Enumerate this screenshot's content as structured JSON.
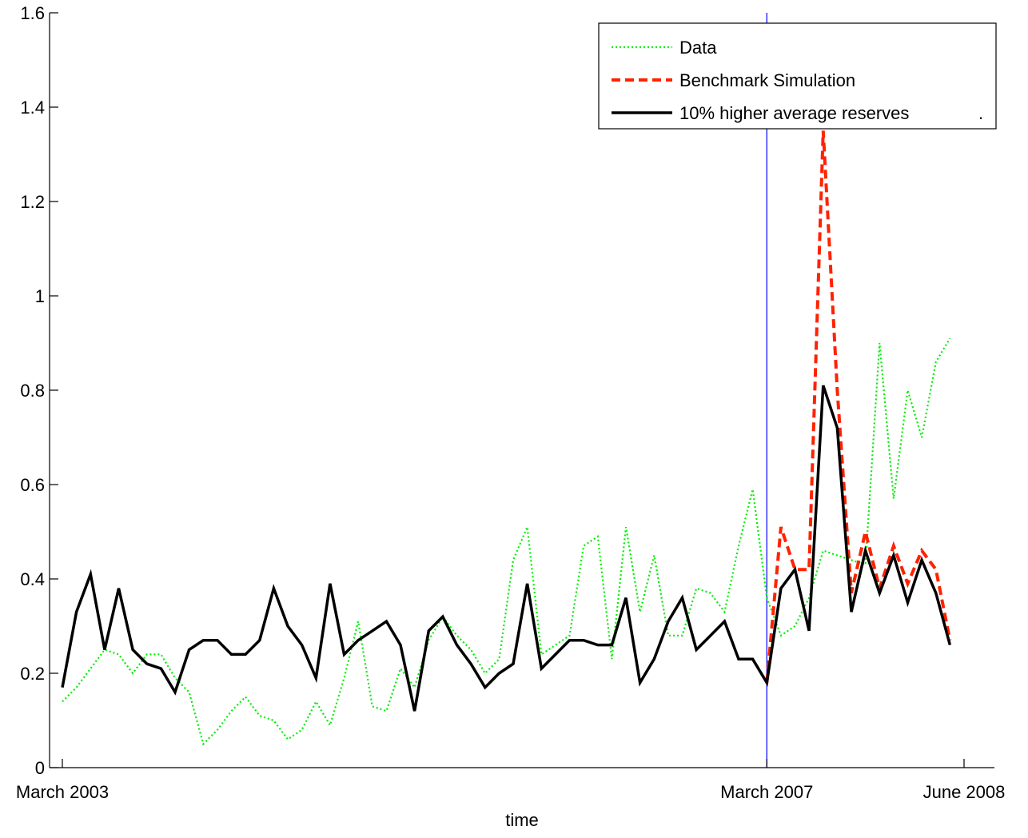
{
  "chart_data": {
    "type": "line",
    "title": "",
    "xlabel": "time",
    "ylabel": "",
    "ylim": [
      0,
      1.6
    ],
    "xlim": [
      0,
      64
    ],
    "yticks": [
      0,
      0.2,
      0.4,
      0.6,
      0.8,
      1,
      1.2,
      1.4,
      1.6
    ],
    "ytick_labels": [
      "0",
      "0.2",
      "0.4",
      "0.6",
      "0.8",
      "1",
      "1.2",
      "1.4",
      "1.6"
    ],
    "xtick_labels": [
      {
        "label": "March 2003",
        "x": 0
      },
      {
        "label": "March 2007",
        "x": 50
      },
      {
        "label": "June 2008",
        "x": 64
      }
    ],
    "vline": {
      "x": 50,
      "color": "#0000ff"
    },
    "grid": false,
    "legend_position": "top-right",
    "legend_extra_mark": ".",
    "series": [
      {
        "name": "Data",
        "color": "#00ee00",
        "style": "dotted",
        "x": [
          0,
          1,
          2,
          3,
          4,
          5,
          6,
          7,
          8,
          9,
          10,
          11,
          12,
          13,
          14,
          15,
          16,
          17,
          18,
          19,
          20,
          21,
          22,
          23,
          24,
          25,
          26,
          27,
          28,
          29,
          30,
          31,
          32,
          33,
          34,
          35,
          36,
          37,
          38,
          39,
          40,
          41,
          42,
          43,
          44,
          45,
          46,
          47,
          48,
          49,
          50,
          51,
          52,
          53,
          54,
          55,
          56,
          57,
          58,
          59,
          60,
          61,
          62,
          63
        ],
        "values": [
          0.14,
          0.17,
          0.21,
          0.25,
          0.24,
          0.2,
          0.24,
          0.24,
          0.19,
          0.16,
          0.05,
          0.08,
          0.12,
          0.15,
          0.11,
          0.1,
          0.06,
          0.08,
          0.14,
          0.09,
          0.19,
          0.31,
          0.13,
          0.12,
          0.21,
          0.17,
          0.27,
          0.32,
          0.28,
          0.25,
          0.2,
          0.23,
          0.44,
          0.51,
          0.24,
          0.26,
          0.28,
          0.47,
          0.49,
          0.23,
          0.51,
          0.33,
          0.45,
          0.28,
          0.28,
          0.38,
          0.37,
          0.33,
          0.47,
          0.59,
          0.36,
          0.28,
          0.3,
          0.36,
          0.46,
          0.45,
          0.44,
          0.43,
          0.9,
          0.57,
          0.8,
          0.7,
          0.86,
          0.91
        ]
      },
      {
        "name": "Benchmark Simulation",
        "color": "#ff2200",
        "style": "dashed",
        "x": [
          50,
          51,
          52,
          53,
          54,
          55,
          56,
          57,
          58,
          59,
          60,
          61,
          62,
          63
        ],
        "values": [
          0.18,
          0.51,
          0.42,
          0.42,
          1.35,
          0.8,
          0.37,
          0.5,
          0.38,
          0.47,
          0.39,
          0.46,
          0.42,
          0.27
        ]
      },
      {
        "name": "10% higher average reserves",
        "color": "#000000",
        "style": "solid",
        "x": [
          0,
          1,
          2,
          3,
          4,
          5,
          6,
          7,
          8,
          9,
          10,
          11,
          12,
          13,
          14,
          15,
          16,
          17,
          18,
          19,
          20,
          21,
          22,
          23,
          24,
          25,
          26,
          27,
          28,
          29,
          30,
          31,
          32,
          33,
          34,
          35,
          36,
          37,
          38,
          39,
          40,
          41,
          42,
          43,
          44,
          45,
          46,
          47,
          48,
          49,
          50,
          51,
          52,
          53,
          54,
          55,
          56,
          57,
          58,
          59,
          60,
          61,
          62,
          63
        ],
        "values": [
          0.17,
          0.33,
          0.41,
          0.25,
          0.38,
          0.25,
          0.22,
          0.21,
          0.16,
          0.25,
          0.27,
          0.27,
          0.24,
          0.24,
          0.27,
          0.38,
          0.3,
          0.26,
          0.19,
          0.39,
          0.24,
          0.27,
          0.29,
          0.31,
          0.26,
          0.12,
          0.29,
          0.32,
          0.26,
          0.22,
          0.17,
          0.2,
          0.22,
          0.39,
          0.21,
          0.24,
          0.27,
          0.27,
          0.26,
          0.26,
          0.36,
          0.18,
          0.23,
          0.31,
          0.36,
          0.25,
          0.28,
          0.31,
          0.23,
          0.23,
          0.18,
          0.38,
          0.42,
          0.29,
          0.81,
          0.72,
          0.33,
          0.46,
          0.37,
          0.45,
          0.35,
          0.44,
          0.37,
          0.26
        ]
      }
    ]
  }
}
